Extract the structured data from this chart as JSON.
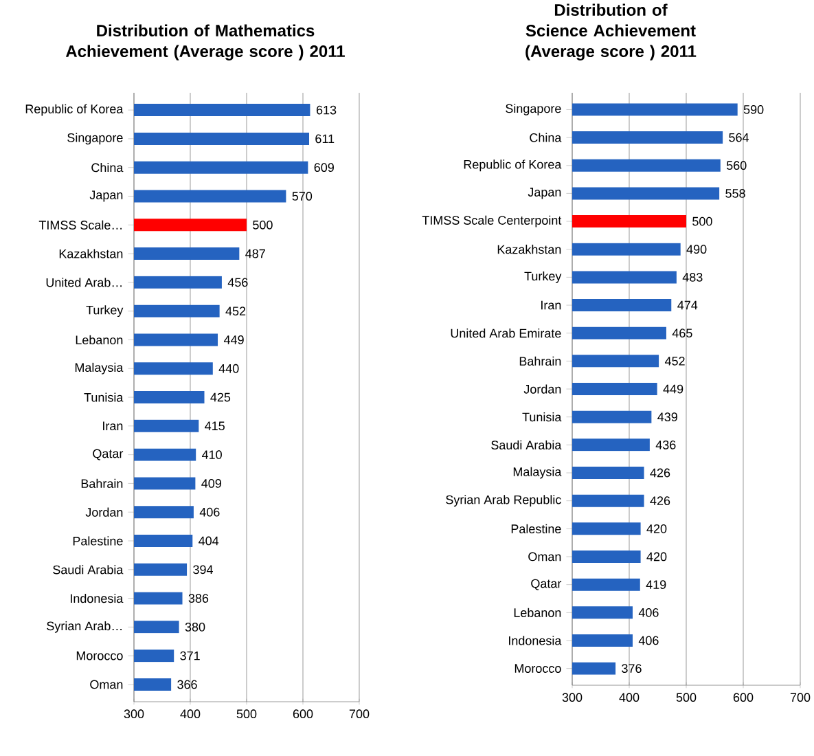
{
  "chart_data": [
    {
      "type": "bar",
      "orientation": "horizontal",
      "title": "Distribution of Mathematics Achievement  (Average score ) 2011",
      "categories": [
        "Republic of Korea",
        "Singapore",
        "China",
        "Japan",
        "TIMSS Scale…",
        "Kazakhstan",
        "United Arab…",
        "Turkey",
        "Lebanon",
        "Malaysia",
        "Tunisia",
        "Iran",
        "Qatar",
        "Bahrain",
        "Jordan",
        "Palestine",
        "Saudi Arabia",
        "Indonesia",
        "Syrian Arab…",
        "Morocco",
        "Oman"
      ],
      "values": [
        613,
        611,
        609,
        570,
        500,
        487,
        456,
        452,
        449,
        440,
        425,
        415,
        410,
        409,
        406,
        404,
        394,
        386,
        380,
        371,
        366
      ],
      "colors": [
        "#2563c0",
        "#2563c0",
        "#2563c0",
        "#2563c0",
        "#ff0000",
        "#2563c0",
        "#2563c0",
        "#2563c0",
        "#2563c0",
        "#2563c0",
        "#2563c0",
        "#2563c0",
        "#2563c0",
        "#2563c0",
        "#2563c0",
        "#2563c0",
        "#2563c0",
        "#2563c0",
        "#2563c0",
        "#2563c0",
        "#2563c0"
      ],
      "xlim": [
        300,
        700
      ],
      "xticks": [
        300,
        400,
        500,
        600,
        700
      ],
      "grid": "x",
      "data_labels": true
    },
    {
      "type": "bar",
      "orientation": "horizontal",
      "title": "Distribution of Science Achievement (Average score ) 2011",
      "categories": [
        "Singapore",
        "China",
        "Republic of Korea",
        "Japan",
        "TIMSS Scale Centerpoint",
        "Kazakhstan",
        "Turkey",
        "Iran",
        "United Arab Emirate",
        "Bahrain",
        "Jordan",
        "Tunisia",
        "Saudi Arabia",
        "Malaysia",
        "Syrian Arab Republic",
        "Palestine",
        "Oman",
        "Qatar",
        "Lebanon",
        "Indonesia",
        "Morocco"
      ],
      "values": [
        590,
        564,
        560,
        558,
        500,
        490,
        483,
        474,
        465,
        452,
        449,
        439,
        436,
        426,
        426,
        420,
        420,
        419,
        406,
        406,
        376
      ],
      "colors": [
        "#2563c0",
        "#2563c0",
        "#2563c0",
        "#2563c0",
        "#ff0000",
        "#2563c0",
        "#2563c0",
        "#2563c0",
        "#2563c0",
        "#2563c0",
        "#2563c0",
        "#2563c0",
        "#2563c0",
        "#2563c0",
        "#2563c0",
        "#2563c0",
        "#2563c0",
        "#2563c0",
        "#2563c0",
        "#2563c0",
        "#2563c0"
      ],
      "xlim": [
        300,
        700
      ],
      "xticks": [
        300,
        400,
        500,
        600,
        700
      ],
      "grid": "x",
      "data_labels": true
    }
  ]
}
